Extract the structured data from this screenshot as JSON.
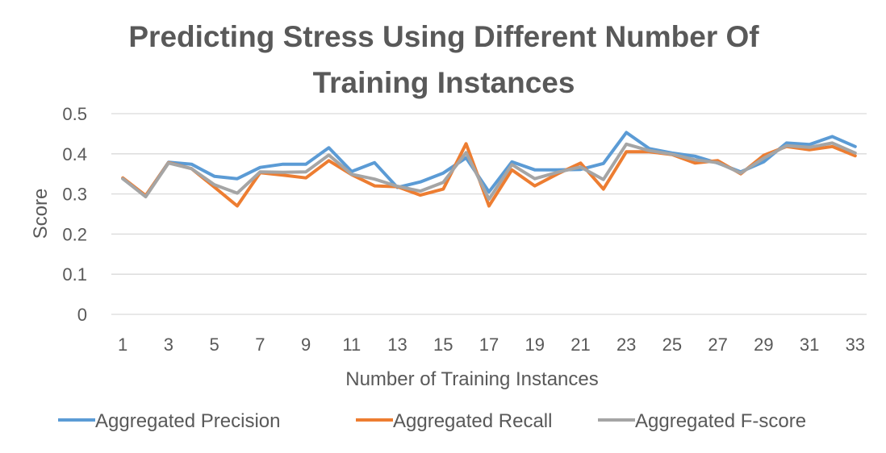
{
  "chart_data": {
    "type": "line",
    "title_line1": "Predicting Stress Using Different Number Of",
    "title_line2": "Training Instances",
    "xlabel": "Number of Training Instances",
    "ylabel": "Score",
    "ylim": [
      0,
      0.5
    ],
    "yticks": [
      "0",
      "0.1",
      "0.2",
      "0.3",
      "0.4",
      "0.5"
    ],
    "xticks": [
      "1",
      "3",
      "5",
      "7",
      "9",
      "11",
      "13",
      "15",
      "17",
      "19",
      "21",
      "23",
      "25",
      "27",
      "29",
      "31",
      "33"
    ],
    "x": [
      1,
      2,
      3,
      4,
      5,
      6,
      7,
      8,
      9,
      10,
      11,
      12,
      13,
      14,
      15,
      16,
      17,
      18,
      19,
      20,
      21,
      22,
      23,
      24,
      25,
      26,
      27,
      28,
      29,
      30,
      31,
      32,
      33
    ],
    "grid": true,
    "legend_position": "bottom",
    "series": [
      {
        "name": "Aggregated Precision",
        "color": "#5b9bd5",
        "values": [
          0.338,
          0.295,
          0.379,
          0.374,
          0.344,
          0.338,
          0.366,
          0.374,
          0.374,
          0.415,
          0.356,
          0.378,
          0.316,
          0.33,
          0.352,
          0.39,
          0.305,
          0.38,
          0.36,
          0.36,
          0.361,
          0.376,
          0.453,
          0.413,
          0.402,
          0.394,
          0.377,
          0.355,
          0.38,
          0.427,
          0.423,
          0.443,
          0.418
        ]
      },
      {
        "name": "Aggregated Recall",
        "color": "#ed7d31",
        "values": [
          0.34,
          0.296,
          0.378,
          0.363,
          0.317,
          0.27,
          0.353,
          0.347,
          0.34,
          0.383,
          0.348,
          0.32,
          0.318,
          0.297,
          0.312,
          0.425,
          0.27,
          0.36,
          0.32,
          0.35,
          0.377,
          0.312,
          0.405,
          0.405,
          0.398,
          0.377,
          0.383,
          0.35,
          0.396,
          0.418,
          0.41,
          0.418,
          0.395
        ]
      },
      {
        "name": "Aggregated F-score",
        "color": "#a5a5a5",
        "values": [
          0.338,
          0.293,
          0.377,
          0.363,
          0.323,
          0.302,
          0.355,
          0.354,
          0.355,
          0.397,
          0.349,
          0.337,
          0.319,
          0.307,
          0.329,
          0.403,
          0.287,
          0.373,
          0.338,
          0.354,
          0.367,
          0.336,
          0.424,
          0.408,
          0.399,
          0.385,
          0.378,
          0.352,
          0.389,
          0.42,
          0.416,
          0.427,
          0.402
        ]
      }
    ]
  }
}
